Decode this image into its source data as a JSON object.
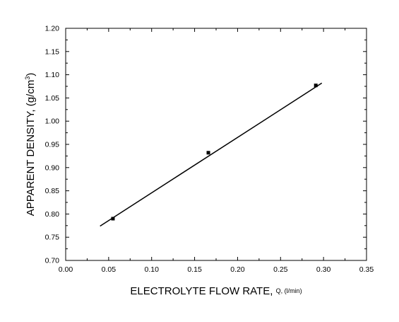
{
  "chart_data": {
    "type": "scatter",
    "xlabel": {
      "main": "ELECTROLYTE FLOW RATE, ",
      "small": "Q, (l/min)"
    },
    "ylabel": {
      "main": "APPARENT DENSITY, (g/cm",
      "sup": "3",
      "end": ")"
    },
    "xlim": [
      0.0,
      0.35
    ],
    "ylim": [
      0.7,
      1.2
    ],
    "x_ticks": [
      "0.00",
      "0.05",
      "0.10",
      "0.15",
      "0.20",
      "0.25",
      "0.30",
      "0.35"
    ],
    "y_ticks": [
      "0.70",
      "0.75",
      "0.80",
      "0.85",
      "0.90",
      "0.95",
      "1.00",
      "1.05",
      "1.10",
      "1.15",
      "1.20"
    ],
    "series": [
      {
        "marker": "square",
        "points": [
          {
            "x": 0.055,
            "y": 0.79
          },
          {
            "x": 0.166,
            "y": 0.932
          },
          {
            "x": 0.291,
            "y": 1.077
          }
        ]
      }
    ],
    "fit_line": {
      "x": [
        0.04,
        0.298
      ],
      "y": [
        0.774,
        1.082
      ]
    },
    "grid": false,
    "colors": {
      "axis": "#000000",
      "marker": "#000000",
      "line": "#000000"
    }
  }
}
